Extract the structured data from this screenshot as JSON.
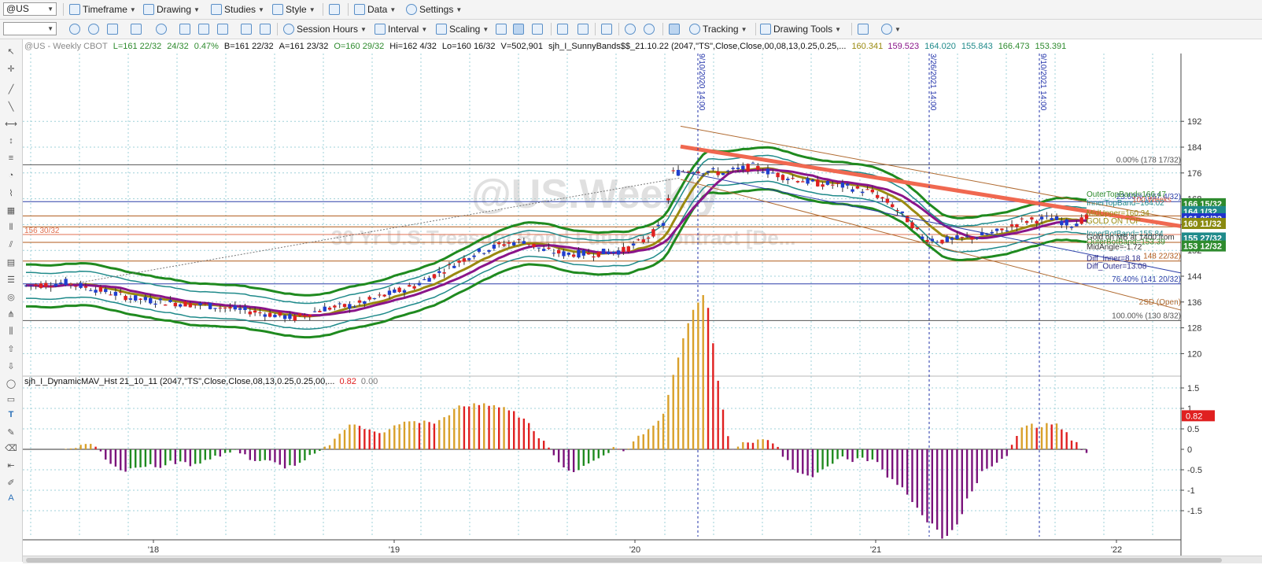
{
  "toolbar1": {
    "symbol": "@US",
    "timeframe": "Timeframe",
    "drawing": "Drawing",
    "studies": "Studies",
    "style": "Style",
    "data": "Data",
    "settings": "Settings"
  },
  "toolbar2": {
    "session_hours": "Session Hours",
    "interval": "Interval",
    "scaling": "Scaling",
    "tracking": "Tracking",
    "drawing_tools": "Drawing Tools"
  },
  "chart": {
    "header": [
      {
        "text": "@US - Weekly  CBOT",
        "color": "#8a8a8a"
      },
      {
        "text": "L=161 22/32",
        "color": "#2e8b2e"
      },
      {
        "text": "24/32",
        "color": "#2e8b2e"
      },
      {
        "text": "0.47%",
        "color": "#2e8b2e"
      },
      {
        "text": "B=161 22/32",
        "color": "#111111"
      },
      {
        "text": "A=161 23/32",
        "color": "#111111"
      },
      {
        "text": "O=160 29/32",
        "color": "#2e8b2e"
      },
      {
        "text": "Hi=162 4/32",
        "color": "#111111"
      },
      {
        "text": "Lo=160 16/32",
        "color": "#111111"
      },
      {
        "text": "V=502,901",
        "color": "#111111"
      },
      {
        "text": "sjh_I_SunnyBands$$_21.10.22 (2047,\"TS\",Close,Close,00,08,13,0.25,0.25,...",
        "color": "#111111"
      },
      {
        "text": "160.341",
        "color": "#9a8a10"
      },
      {
        "text": "159.523",
        "color": "#8a158a"
      },
      {
        "text": "164.020",
        "color": "#1f8a8a"
      },
      {
        "text": "155.843",
        "color": "#1f8a8a"
      },
      {
        "text": "166.473",
        "color": "#2e8b2e"
      },
      {
        "text": "153.391",
        "color": "#2e8b2e"
      }
    ],
    "watermark_symbol": "@US.Weekly",
    "watermark_desc": "30 Yr U.S.Treasury Bond Futures Contract [De...",
    "y_ticks": [
      "192",
      "184",
      "176",
      "168",
      "160",
      "152",
      "144",
      "136",
      "128",
      "120"
    ],
    "x_ticks": [
      "'18",
      "'19",
      "'20",
      "'21",
      "'22"
    ],
    "date_marks": [
      "9/10/2020 14:00",
      "3/26/2021 14:00",
      "9/10/2021 14:00"
    ],
    "fib_levels": [
      {
        "label": "0.00% (178 17/32)",
        "color": "#555555"
      },
      {
        "label": "23.60% (167 4/32)",
        "color": "#2b3ea8"
      },
      {
        "label": "76.40% (141 20/32)",
        "color": "#2b3ea8"
      },
      {
        "label": "100.00% (130 8/32)",
        "color": "#555555"
      },
      {
        "label": "148 22/32)",
        "color": "#b05a1a"
      }
    ],
    "left_level_label": "156 30/32",
    "channel_label": "2SD (Open)",
    "overlay_labels": [
      {
        "text": "OuterTopBand=166.47",
        "color": "#2e8b2e"
      },
      {
        "text": "InnerTopBand=164.02",
        "color": "#1f8a8a"
      },
      {
        "text": "MidUpper=160.34",
        "color": "#9a8a10"
      },
      {
        "text": "GOLD ON TOP",
        "color": "#9a8a10"
      },
      {
        "text": "InnerBotBand=155.84",
        "color": "#1f8a8a"
      },
      {
        "text": "Gold on MB at 1400 from",
        "color": "#333333"
      },
      {
        "text": "OuterBotBand=153.39",
        "color": "#2e8b2e"
      },
      {
        "text": "MidAngle=-1.72",
        "color": "#333333"
      },
      {
        "text": "Diff_Inner=8.18",
        "color": "#2b2b8a"
      },
      {
        "text": "Diff_Outer=13.08",
        "color": "#2b2b8a"
      },
      {
        "text": "100 Weeks",
        "color": "#e06040"
      }
    ],
    "price_tags": [
      {
        "text": "166 15/32",
        "bg": "#2e8b2e"
      },
      {
        "text": "164 1/32",
        "bg": "#1f8a8a"
      },
      {
        "text": "161 26/32",
        "bg": "#2233cc"
      },
      {
        "text": "160 11/32",
        "bg": "#8a8a10"
      },
      {
        "text": "155 27/32",
        "bg": "#1f8a8a"
      },
      {
        "text": "153 12/32",
        "bg": "#2e8b2e"
      }
    ],
    "colors": {
      "up": "#1f3fcf",
      "down": "#e02020",
      "outer_band": "#1f8a1f",
      "inner_band": "#1f8a8a",
      "mid_upper": "#9a8a10",
      "mid_lower": "#8a158a",
      "trend": "#f06850",
      "channel": "#b06a30"
    }
  },
  "subchart": {
    "header": "sjh_I_DynamicMAV_Hst 21_10_11 (2047,\"TS\",Close,Close,08,13,0.25,0.25,00,...",
    "value1": "0.82",
    "value2": "0.00",
    "y_ticks": [
      "1.5",
      "1",
      "0.5",
      "0",
      "-0.5",
      "-1",
      "-1.5"
    ],
    "current_tag": "0.82",
    "colors": {
      "gold": "#d9a02a",
      "red": "#e02020",
      "purple": "#7a127a",
      "green": "#1f8a1f"
    }
  }
}
